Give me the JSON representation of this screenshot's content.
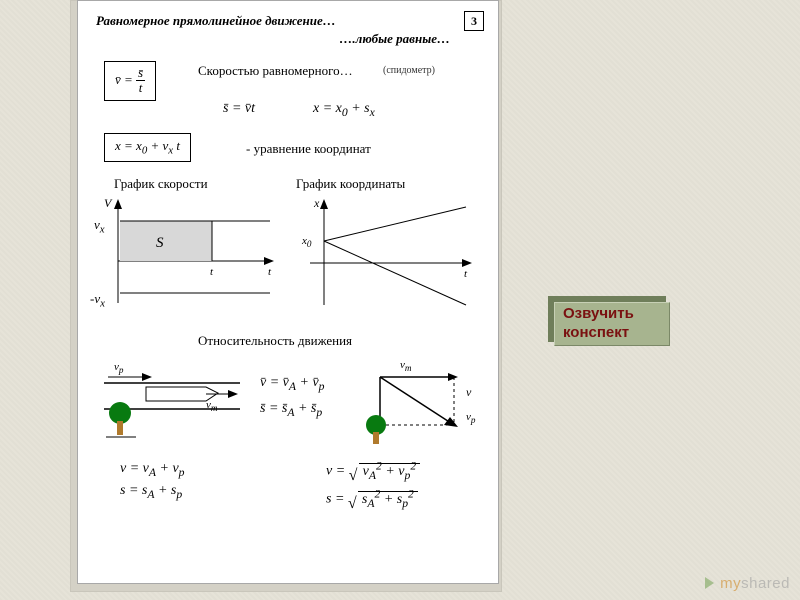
{
  "page_number": "3",
  "title_line1": "Равномерное прямолинейное движение…",
  "title_line2": "….любые равные…",
  "def_text": "Скоростью равномерного…",
  "def_hint": "(спидометр)",
  "eq_v": {
    "lhs": "v̄ =",
    "num": "s̄",
    "den": "t"
  },
  "eq_s": "s̄ = v̄t",
  "eq_x1": "x = x<sub>0</sub> + s<sub>x</sub>",
  "eq_coord": "x = x<sub>0</sub> + v<sub>x</sub> t",
  "eq_coord_note": "-  уравнение координат",
  "chart_v_title": "График скорости",
  "chart_x_title": "График координаты",
  "chart_v": {
    "axis_y": "V",
    "axis_x": "t",
    "lbl_vplus": "v<sub>x</sub>",
    "lbl_vminus": "-v<sub>x</sub>",
    "area_label": "S",
    "colors": {
      "area": "#d8d8d8",
      "line": "#000000"
    }
  },
  "chart_x": {
    "axis_y": "x",
    "axis_x": "t",
    "lbl_x0": "x<sub>0</sub>",
    "colors": {
      "line": "#000000"
    }
  },
  "rel_title": "Относительность движения",
  "rel_left": {
    "v_p": "v<sub>p</sub>",
    "v_m": "v<sub>m</sub>"
  },
  "rel_formula_v": "v̄ = v̄<sub>A</sub> + v̄<sub>p</sub>",
  "rel_formula_s": "s̄ = s̄<sub>A</sub> + s̄<sub>p</sub>",
  "rel_right": {
    "v": "v",
    "v_m": "v<sub>m</sub>",
    "v_p": "v<sub>p</sub>"
  },
  "scalar_v": "v = v<sub>A</sub> + v<sub>p</sub>",
  "scalar_s": "s = s<sub>A</sub> + s<sub>p</sub>",
  "pyth_v": {
    "lhs": "v  =",
    "under": "v<sub>A</sub><sup>2</sup> + v<sub>p</sub><sup>2</sup>"
  },
  "pyth_s": {
    "lhs": "s  =",
    "under": "s<sub>A</sub><sup>2</sup> + s<sub>p</sub><sup>2</sup>"
  },
  "button": {
    "line1": "Озвучить",
    "line2": "конспект"
  },
  "watermark": {
    "a": "my",
    "b": "shared"
  },
  "colors": {
    "tree_crown": "#087a10",
    "tree_trunk": "#b07a2c"
  }
}
